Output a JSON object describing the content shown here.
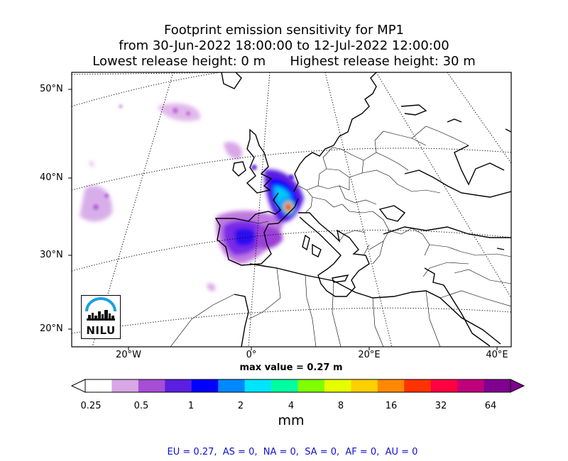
{
  "title": {
    "line1": "Footprint emission sensitivity for MP1",
    "line2": "from 30-Jun-2022 18:00:00 to 12-Jul-2022 12:00:00",
    "line3": "Lowest release height: 0 m      Highest release height: 30 m"
  },
  "map": {
    "lat_labels": [
      "50°N",
      "40°N",
      "30°N",
      "20°N"
    ],
    "lon_labels": [
      "20°W",
      "0°",
      "20°E",
      "40°E"
    ],
    "max_value": "max value = 0.27 m",
    "logo_text": "NILU"
  },
  "colorbar": {
    "ticks": [
      "0.25",
      "0.5",
      "1",
      "2",
      "4",
      "8",
      "16",
      "32",
      "64"
    ],
    "unit": "mm",
    "colors": [
      "#ffffff",
      "#d9a6e6",
      "#a64dd6",
      "#5a1fe0",
      "#0000ff",
      "#0088ff",
      "#00e5ff",
      "#00ffa0",
      "#7fff00",
      "#e6ff00",
      "#ffd000",
      "#ff8800",
      "#ff3300",
      "#ff0040",
      "#c0007a",
      "#800090"
    ]
  },
  "summary": "EU = 0.27,  AS = 0,  NA = 0,  SA = 0,  AF = 0,  AU = 0"
}
